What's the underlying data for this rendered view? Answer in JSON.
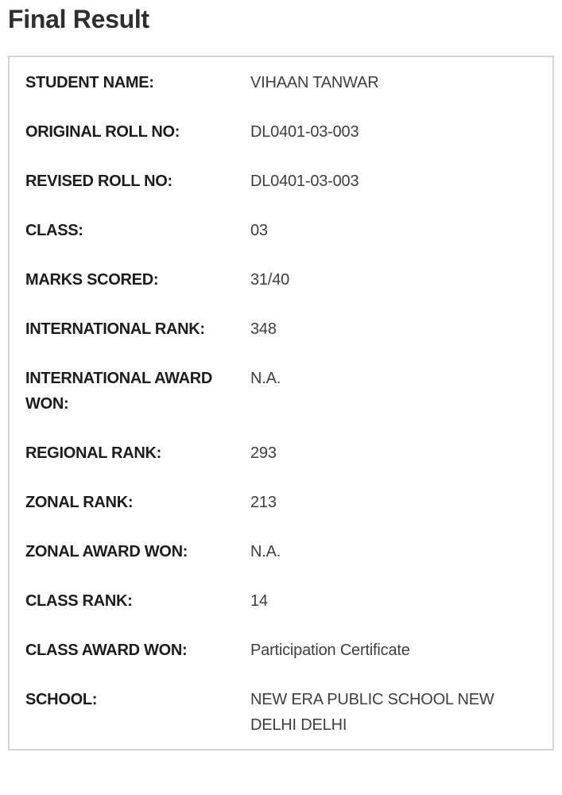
{
  "page": {
    "title": "Final Result"
  },
  "result_card": {
    "rows": [
      {
        "label": "STUDENT NAME:",
        "value": "VIHAAN TANWAR"
      },
      {
        "label": "ORIGINAL ROLL NO:",
        "value": "DL0401-03-003"
      },
      {
        "label": "REVISED ROLL NO:",
        "value": "DL0401-03-003"
      },
      {
        "label": "CLASS:",
        "value": "03"
      },
      {
        "label": "MARKS SCORED:",
        "value": "31/40"
      },
      {
        "label": "INTERNATIONAL RANK:",
        "value": "348"
      },
      {
        "label": "INTERNATIONAL AWARD WON:",
        "value": "N.A."
      },
      {
        "label": "REGIONAL RANK:",
        "value": "293"
      },
      {
        "label": "ZONAL RANK:",
        "value": "213"
      },
      {
        "label": "ZONAL AWARD WON:",
        "value": "N.A."
      },
      {
        "label": "CLASS RANK:",
        "value": "14"
      },
      {
        "label": "CLASS AWARD WON:",
        "value": "Participation Certificate"
      },
      {
        "label": "SCHOOL:",
        "value": "NEW ERA PUBLIC SCHOOL NEW DELHI DELHI"
      }
    ]
  },
  "colors": {
    "title_text": "#2e2e2e",
    "label_text": "#1c1c1c",
    "value_text": "#3e3e3e",
    "card_border": "#d4d4d4",
    "background": "#ffffff"
  }
}
